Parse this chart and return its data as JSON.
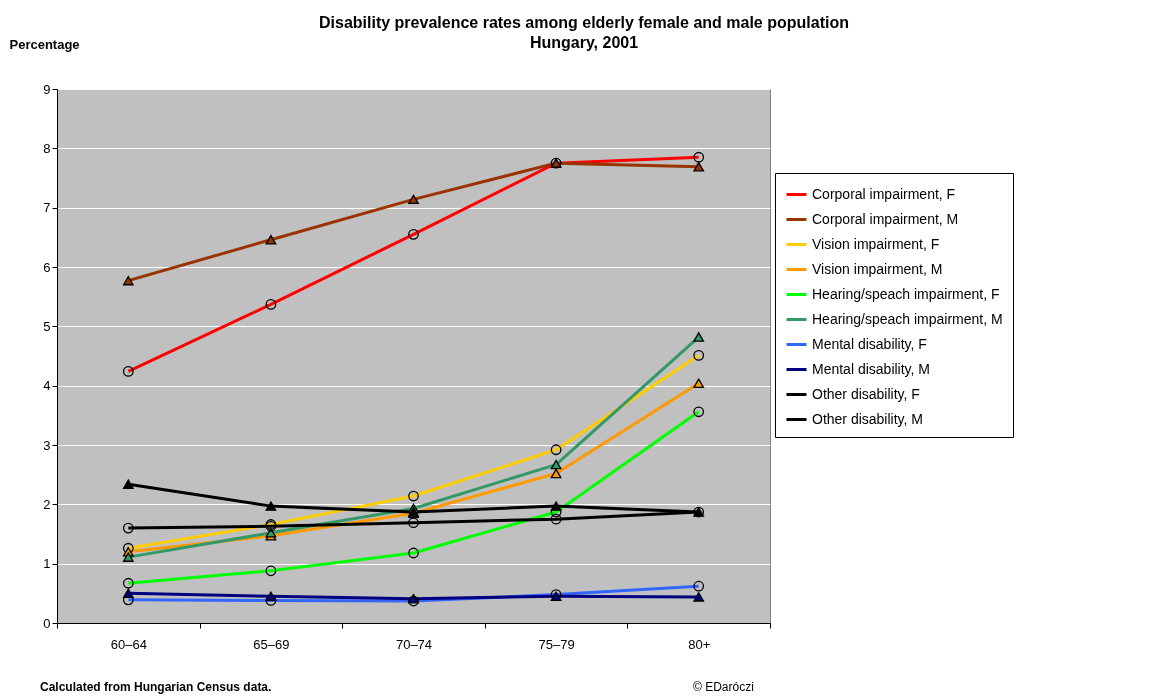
{
  "chart_data": {
    "type": "line",
    "title": "Disability prevalence rates among elderly female and male population",
    "subtitle": "Hungary, 2001",
    "ylabel": "Percentage",
    "categories": [
      "60–64",
      "65–69",
      "70–74",
      "75–79",
      "80+"
    ],
    "ylim": [
      0,
      9
    ],
    "yticks": [
      0,
      1,
      2,
      3,
      4,
      5,
      6,
      7,
      8,
      9
    ],
    "grid": "y",
    "legend": "right",
    "annotations": [
      "Calculated from Hungarian Census data.",
      "© EDaróczi"
    ],
    "series": [
      {
        "name": "Corporal impairment, F",
        "color": "#ff0000",
        "marker": "circle",
        "values": [
          4.24,
          5.37,
          6.55,
          7.75,
          7.85
        ]
      },
      {
        "name": "Corporal impairment, M",
        "color": "#993300",
        "marker": "triangle",
        "values": [
          5.77,
          6.46,
          7.14,
          7.75,
          7.69
        ]
      },
      {
        "name": "Vision impairment, F",
        "color": "#ffcc00",
        "marker": "circle",
        "values": [
          1.26,
          1.66,
          2.14,
          2.92,
          4.51
        ]
      },
      {
        "name": "Vision impairment, M",
        "color": "#ff9900",
        "marker": "triangle",
        "values": [
          1.2,
          1.47,
          1.85,
          2.52,
          4.04
        ]
      },
      {
        "name": "Hearing/speach impairment, F",
        "color": "#00ff00",
        "marker": "circle",
        "values": [
          0.67,
          0.88,
          1.18,
          1.87,
          3.56
        ]
      },
      {
        "name": "Hearing/speach impairment, M",
        "color": "#339966",
        "marker": "triangle",
        "values": [
          1.11,
          1.52,
          1.93,
          2.67,
          4.82
        ]
      },
      {
        "name": "Mental disability, F",
        "color": "#3366ff",
        "marker": "circle",
        "values": [
          0.39,
          0.38,
          0.37,
          0.48,
          0.62
        ]
      },
      {
        "name": "Mental disability, M",
        "color": "#000080",
        "marker": "triangle",
        "values": [
          0.5,
          0.45,
          0.41,
          0.45,
          0.44
        ]
      },
      {
        "name": "Other disability, F",
        "color": "#000000",
        "marker": "circle",
        "values": [
          1.6,
          1.63,
          1.69,
          1.75,
          1.87
        ]
      },
      {
        "name": "Other disability, M",
        "color": "#000000",
        "marker": "triangle",
        "values": [
          2.34,
          1.97,
          1.87,
          1.97,
          1.87
        ]
      }
    ]
  }
}
